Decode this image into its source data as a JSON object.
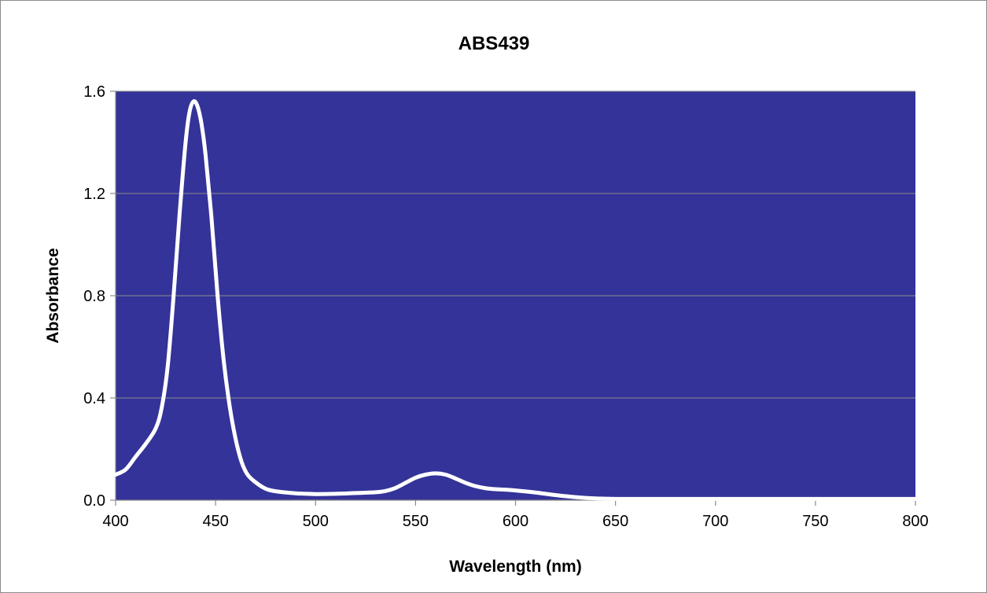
{
  "chart_data": {
    "type": "line",
    "title": "ABS439",
    "xlabel": "Wavelength (nm)",
    "ylabel": "Absorbance",
    "xlim": [
      400,
      800
    ],
    "ylim": [
      0,
      1.6
    ],
    "x_ticks": [
      "400",
      "450",
      "500",
      "550",
      "600",
      "650",
      "700",
      "750",
      "800"
    ],
    "y_ticks": [
      "0.0",
      "0.4",
      "0.8",
      "1.2",
      "1.6"
    ],
    "grid": "horizontal",
    "legend": "none",
    "plot_background": "#333399",
    "line_color": "#ffffff",
    "series": [
      {
        "x": [
          400,
          405,
          410,
          415,
          420,
          423,
          426,
          429,
          432,
          435,
          437,
          439,
          441,
          443,
          445,
          448,
          451,
          454,
          457,
          460,
          463,
          466,
          470,
          475,
          480,
          490,
          500,
          510,
          520,
          530,
          535,
          540,
          545,
          550,
          555,
          560,
          565,
          570,
          575,
          580,
          585,
          590,
          595,
          600,
          610,
          620,
          630,
          640,
          650,
          660,
          680,
          700,
          720,
          740,
          760,
          780,
          800
        ],
        "y": [
          0.1,
          0.12,
          0.17,
          0.22,
          0.28,
          0.36,
          0.52,
          0.8,
          1.12,
          1.4,
          1.52,
          1.56,
          1.54,
          1.47,
          1.35,
          1.1,
          0.8,
          0.55,
          0.37,
          0.24,
          0.15,
          0.1,
          0.07,
          0.045,
          0.035,
          0.027,
          0.024,
          0.025,
          0.028,
          0.031,
          0.036,
          0.048,
          0.068,
          0.088,
          0.1,
          0.105,
          0.1,
          0.085,
          0.068,
          0.055,
          0.047,
          0.043,
          0.041,
          0.038,
          0.03,
          0.02,
          0.012,
          0.007,
          0.005,
          0.005,
          0.005,
          0.005,
          0.005,
          0.005,
          0.005,
          0.005,
          0.005
        ]
      }
    ]
  }
}
